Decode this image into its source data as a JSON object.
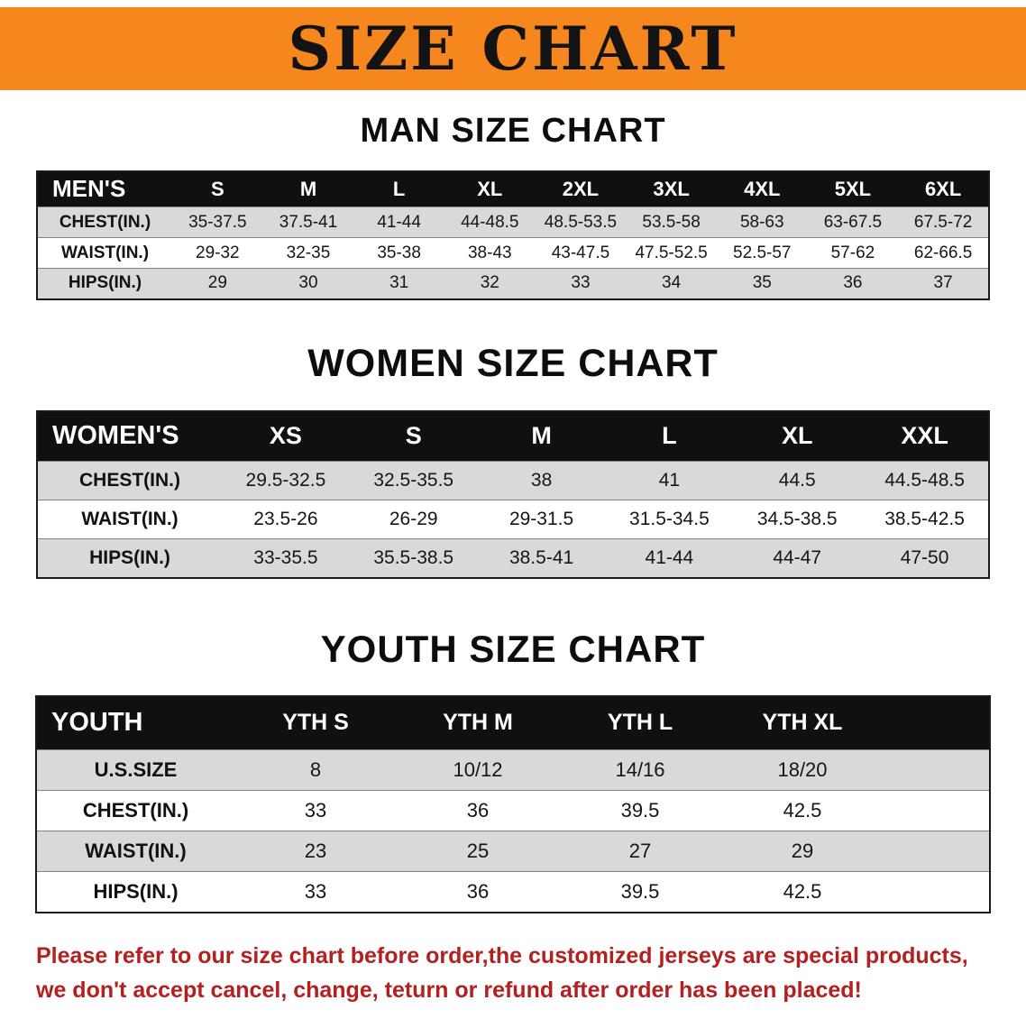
{
  "banner": {
    "title": "SIZE CHART"
  },
  "colors": {
    "banner_bg": "#F6871F",
    "table_header_bg": "#101010",
    "stripe": "#d9d9d9",
    "footer_text": "#B2201F"
  },
  "tables": [
    {
      "section_title": "MAN SIZE CHART",
      "header_label": "MEN'S",
      "columns": [
        "S",
        "M",
        "L",
        "XL",
        "2XL",
        "3XL",
        "4XL",
        "5XL",
        "6XL"
      ],
      "rows": [
        {
          "label": "CHEST(IN.)",
          "values": [
            "35-37.5",
            "37.5-41",
            "41-44",
            "44-48.5",
            "48.5-53.5",
            "53.5-58",
            "58-63",
            "63-67.5",
            "67.5-72"
          ]
        },
        {
          "label": "WAIST(IN.)",
          "values": [
            "29-32",
            "32-35",
            "35-38",
            "38-43",
            "43-47.5",
            "47.5-52.5",
            "52.5-57",
            "57-62",
            "62-66.5"
          ]
        },
        {
          "label": "HIPS(IN.)",
          "values": [
            "29",
            "30",
            "31",
            "32",
            "33",
            "34",
            "35",
            "36",
            "37"
          ]
        }
      ]
    },
    {
      "section_title": "WOMEN SIZE CHART",
      "header_label": "WOMEN'S",
      "columns": [
        "XS",
        "S",
        "M",
        "L",
        "XL",
        "XXL"
      ],
      "rows": [
        {
          "label": "CHEST(IN.)",
          "values": [
            "29.5-32.5",
            "32.5-35.5",
            "38",
            "41",
            "44.5",
            "44.5-48.5"
          ]
        },
        {
          "label": "WAIST(IN.)",
          "values": [
            "23.5-26",
            "26-29",
            "29-31.5",
            "31.5-34.5",
            "34.5-38.5",
            "38.5-42.5"
          ]
        },
        {
          "label": "HIPS(IN.)",
          "values": [
            "33-35.5",
            "35.5-38.5",
            "38.5-41",
            "41-44",
            "44-47",
            "47-50"
          ]
        }
      ]
    },
    {
      "section_title": "YOUTH SIZE CHART",
      "header_label": "YOUTH",
      "columns": [
        "YTH S",
        "YTH M",
        "YTH L",
        "YTH XL"
      ],
      "rows": [
        {
          "label": "U.S.SIZE",
          "values": [
            "8",
            "10/12",
            "14/16",
            "18/20"
          ]
        },
        {
          "label": "CHEST(IN.)",
          "values": [
            "33",
            "36",
            "39.5",
            "42.5"
          ]
        },
        {
          "label": "WAIST(IN.)",
          "values": [
            "23",
            "25",
            "27",
            "29"
          ]
        },
        {
          "label": "HIPS(IN.)",
          "values": [
            "33",
            "36",
            "39.5",
            "42.5"
          ]
        }
      ]
    }
  ],
  "footer": {
    "line1": "Please refer to our size chart before order,the customized jerseys are special products,",
    "line2": "we don't accept cancel, change, teturn or refund after order has been placed!"
  }
}
